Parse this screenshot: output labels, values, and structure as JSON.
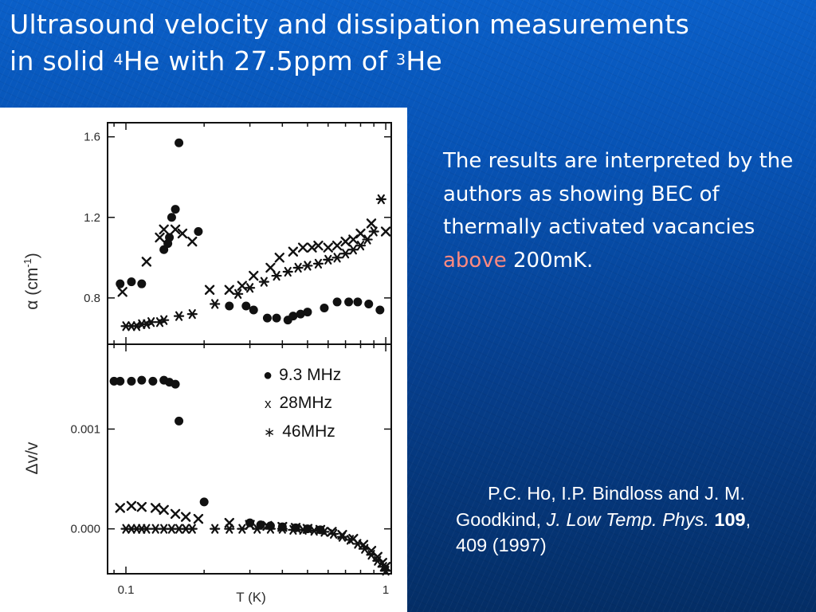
{
  "slide": {
    "title": {
      "line1": "Ultrasound velocity and dissipation measurements",
      "line2_prefix": "in solid ",
      "sup1": "4",
      "line2_mid": "He with 27.5ppm of ",
      "sup2": "3",
      "line2_suffix": "He"
    },
    "summary": {
      "text_before": "The results are interpreted by the authors as showing BEC of thermally activated vacancies ",
      "highlight": "above",
      "text_after": " 200mK.",
      "highlight_color": "#ff8a80"
    },
    "citation": {
      "authors": "P.C. Ho, I.P. Bindloss and J. M. Goodkind, ",
      "journal": "J. Low Temp. Phys.",
      "volume": "109",
      "sep": ",",
      "pages_year": "409 (1997)"
    }
  },
  "chart_data": [
    {
      "type": "scatter",
      "title": "",
      "xlabel": "T (K)",
      "ylabel": "α (cm-1)",
      "ylabel_parts": {
        "symbol": "α",
        "open": " (cm",
        "sup": "-1",
        "close": ")"
      },
      "xscale": "log",
      "xlim": [
        0.085,
        1.05
      ],
      "ylim": [
        0.57,
        1.67
      ],
      "yticks": [
        0.8,
        1.2,
        1.6
      ],
      "ytick_labels": [
        "0.8",
        "1.2",
        "1.6"
      ],
      "series": [
        {
          "name": "9.3 MHz",
          "marker": "dot",
          "x": [
            0.095,
            0.105,
            0.115,
            0.14,
            0.145,
            0.147,
            0.15,
            0.155,
            0.16,
            0.19,
            0.25,
            0.29,
            0.31,
            0.35,
            0.38,
            0.42,
            0.44,
            0.47,
            0.5,
            0.58,
            0.65,
            0.72,
            0.78,
            0.86,
            0.95
          ],
          "y": [
            0.87,
            0.88,
            0.87,
            1.04,
            1.07,
            1.1,
            1.2,
            1.24,
            1.57,
            1.13,
            0.76,
            0.76,
            0.74,
            0.7,
            0.7,
            0.69,
            0.71,
            0.72,
            0.73,
            0.75,
            0.78,
            0.78,
            0.78,
            0.77,
            0.74
          ]
        },
        {
          "name": "28MHz",
          "marker": "x",
          "x": [
            0.097,
            0.12,
            0.135,
            0.14,
            0.155,
            0.165,
            0.18,
            0.21,
            0.25,
            0.28,
            0.31,
            0.36,
            0.39,
            0.44,
            0.48,
            0.52,
            0.55,
            0.6,
            0.65,
            0.7,
            0.75,
            0.8,
            0.88,
            1.0
          ],
          "y": [
            0.83,
            0.98,
            1.1,
            1.14,
            1.14,
            1.12,
            1.08,
            0.84,
            0.84,
            0.86,
            0.91,
            0.95,
            1.0,
            1.03,
            1.05,
            1.05,
            1.06,
            1.05,
            1.06,
            1.08,
            1.09,
            1.12,
            1.17,
            1.13
          ]
        },
        {
          "name": "46MHz",
          "marker": "asterisk",
          "x": [
            0.1,
            0.105,
            0.11,
            0.115,
            0.12,
            0.125,
            0.135,
            0.14,
            0.16,
            0.18,
            0.22,
            0.27,
            0.3,
            0.34,
            0.38,
            0.42,
            0.46,
            0.5,
            0.55,
            0.6,
            0.65,
            0.7,
            0.75,
            0.8,
            0.85,
            0.9,
            0.96
          ],
          "y": [
            0.66,
            0.66,
            0.66,
            0.67,
            0.67,
            0.68,
            0.68,
            0.69,
            0.71,
            0.72,
            0.77,
            0.82,
            0.85,
            0.88,
            0.91,
            0.93,
            0.95,
            0.96,
            0.97,
            0.99,
            1.0,
            1.02,
            1.04,
            1.06,
            1.09,
            1.13,
            1.29
          ]
        }
      ]
    },
    {
      "type": "scatter",
      "title": "",
      "xlabel": "T (K)",
      "ylabel": "Δv/v",
      "xscale": "log",
      "xlim": [
        0.085,
        1.05
      ],
      "xticks": [
        0.1,
        1
      ],
      "xtick_labels": [
        "0.1",
        "1"
      ],
      "ylim": [
        -0.00045,
        0.00185
      ],
      "yticks": [
        0.0,
        0.001
      ],
      "ytick_labels": [
        "0.000",
        "0.001"
      ],
      "legend": {
        "placement": "top-right",
        "entries": [
          {
            "symbol": "●",
            "label": "9.3 MHz"
          },
          {
            "symbol": "x",
            "label": "28MHz"
          },
          {
            "symbol": "∗",
            "label": "46MHz"
          }
        ]
      },
      "series": [
        {
          "name": "9.3 MHz",
          "marker": "dot",
          "x": [
            0.09,
            0.095,
            0.105,
            0.115,
            0.127,
            0.14,
            0.147,
            0.155,
            0.16,
            0.2,
            0.3,
            0.33,
            0.36,
            0.4,
            0.45,
            0.5,
            0.56
          ],
          "y": [
            0.00148,
            0.00148,
            0.00148,
            0.00149,
            0.00148,
            0.00149,
            0.00147,
            0.00145,
            0.00108,
            0.00027,
            6e-05,
            4e-05,
            3e-05,
            2e-05,
            1e-05,
            0.0,
            -1e-05
          ]
        },
        {
          "name": "28MHz",
          "marker": "x",
          "x": [
            0.095,
            0.105,
            0.115,
            0.13,
            0.14,
            0.155,
            0.17,
            0.19,
            0.25,
            0.3,
            0.35,
            0.4,
            0.45,
            0.5,
            0.56,
            0.62,
            0.68,
            0.75,
            0.82,
            0.88,
            0.93,
            0.97,
            1.0
          ],
          "y": [
            0.00021,
            0.00023,
            0.00022,
            0.00021,
            0.00019,
            0.00015,
            0.00012,
            0.0001,
            6e-05,
            4e-05,
            3e-05,
            2e-05,
            1e-05,
            0.0,
            -1e-05,
            -3e-05,
            -6e-05,
            -0.0001,
            -0.00016,
            -0.00022,
            -0.00028,
            -0.00034,
            -0.00038
          ]
        },
        {
          "name": "46MHz",
          "marker": "asterisk",
          "x": [
            0.1,
            0.105,
            0.11,
            0.115,
            0.12,
            0.13,
            0.14,
            0.15,
            0.16,
            0.17,
            0.18,
            0.22,
            0.25,
            0.28,
            0.32,
            0.36,
            0.4,
            0.44,
            0.48,
            0.53,
            0.58,
            0.63,
            0.68,
            0.73,
            0.78,
            0.83,
            0.88,
            0.93,
            0.98,
            1.0
          ],
          "y": [
            0.0,
            0.0,
            0.0,
            0.0,
            0.0,
            0.0,
            0.0,
            0.0,
            0.0,
            0.0,
            0.0,
            0.0,
            0.0,
            0.0,
            0.0,
            0.0,
            0.0,
            -1e-05,
            -1e-05,
            -2e-05,
            -3e-05,
            -5e-05,
            -8e-05,
            -0.00011,
            -0.00015,
            -0.0002,
            -0.00026,
            -0.00032,
            -0.00038,
            -0.00042
          ]
        }
      ]
    }
  ]
}
